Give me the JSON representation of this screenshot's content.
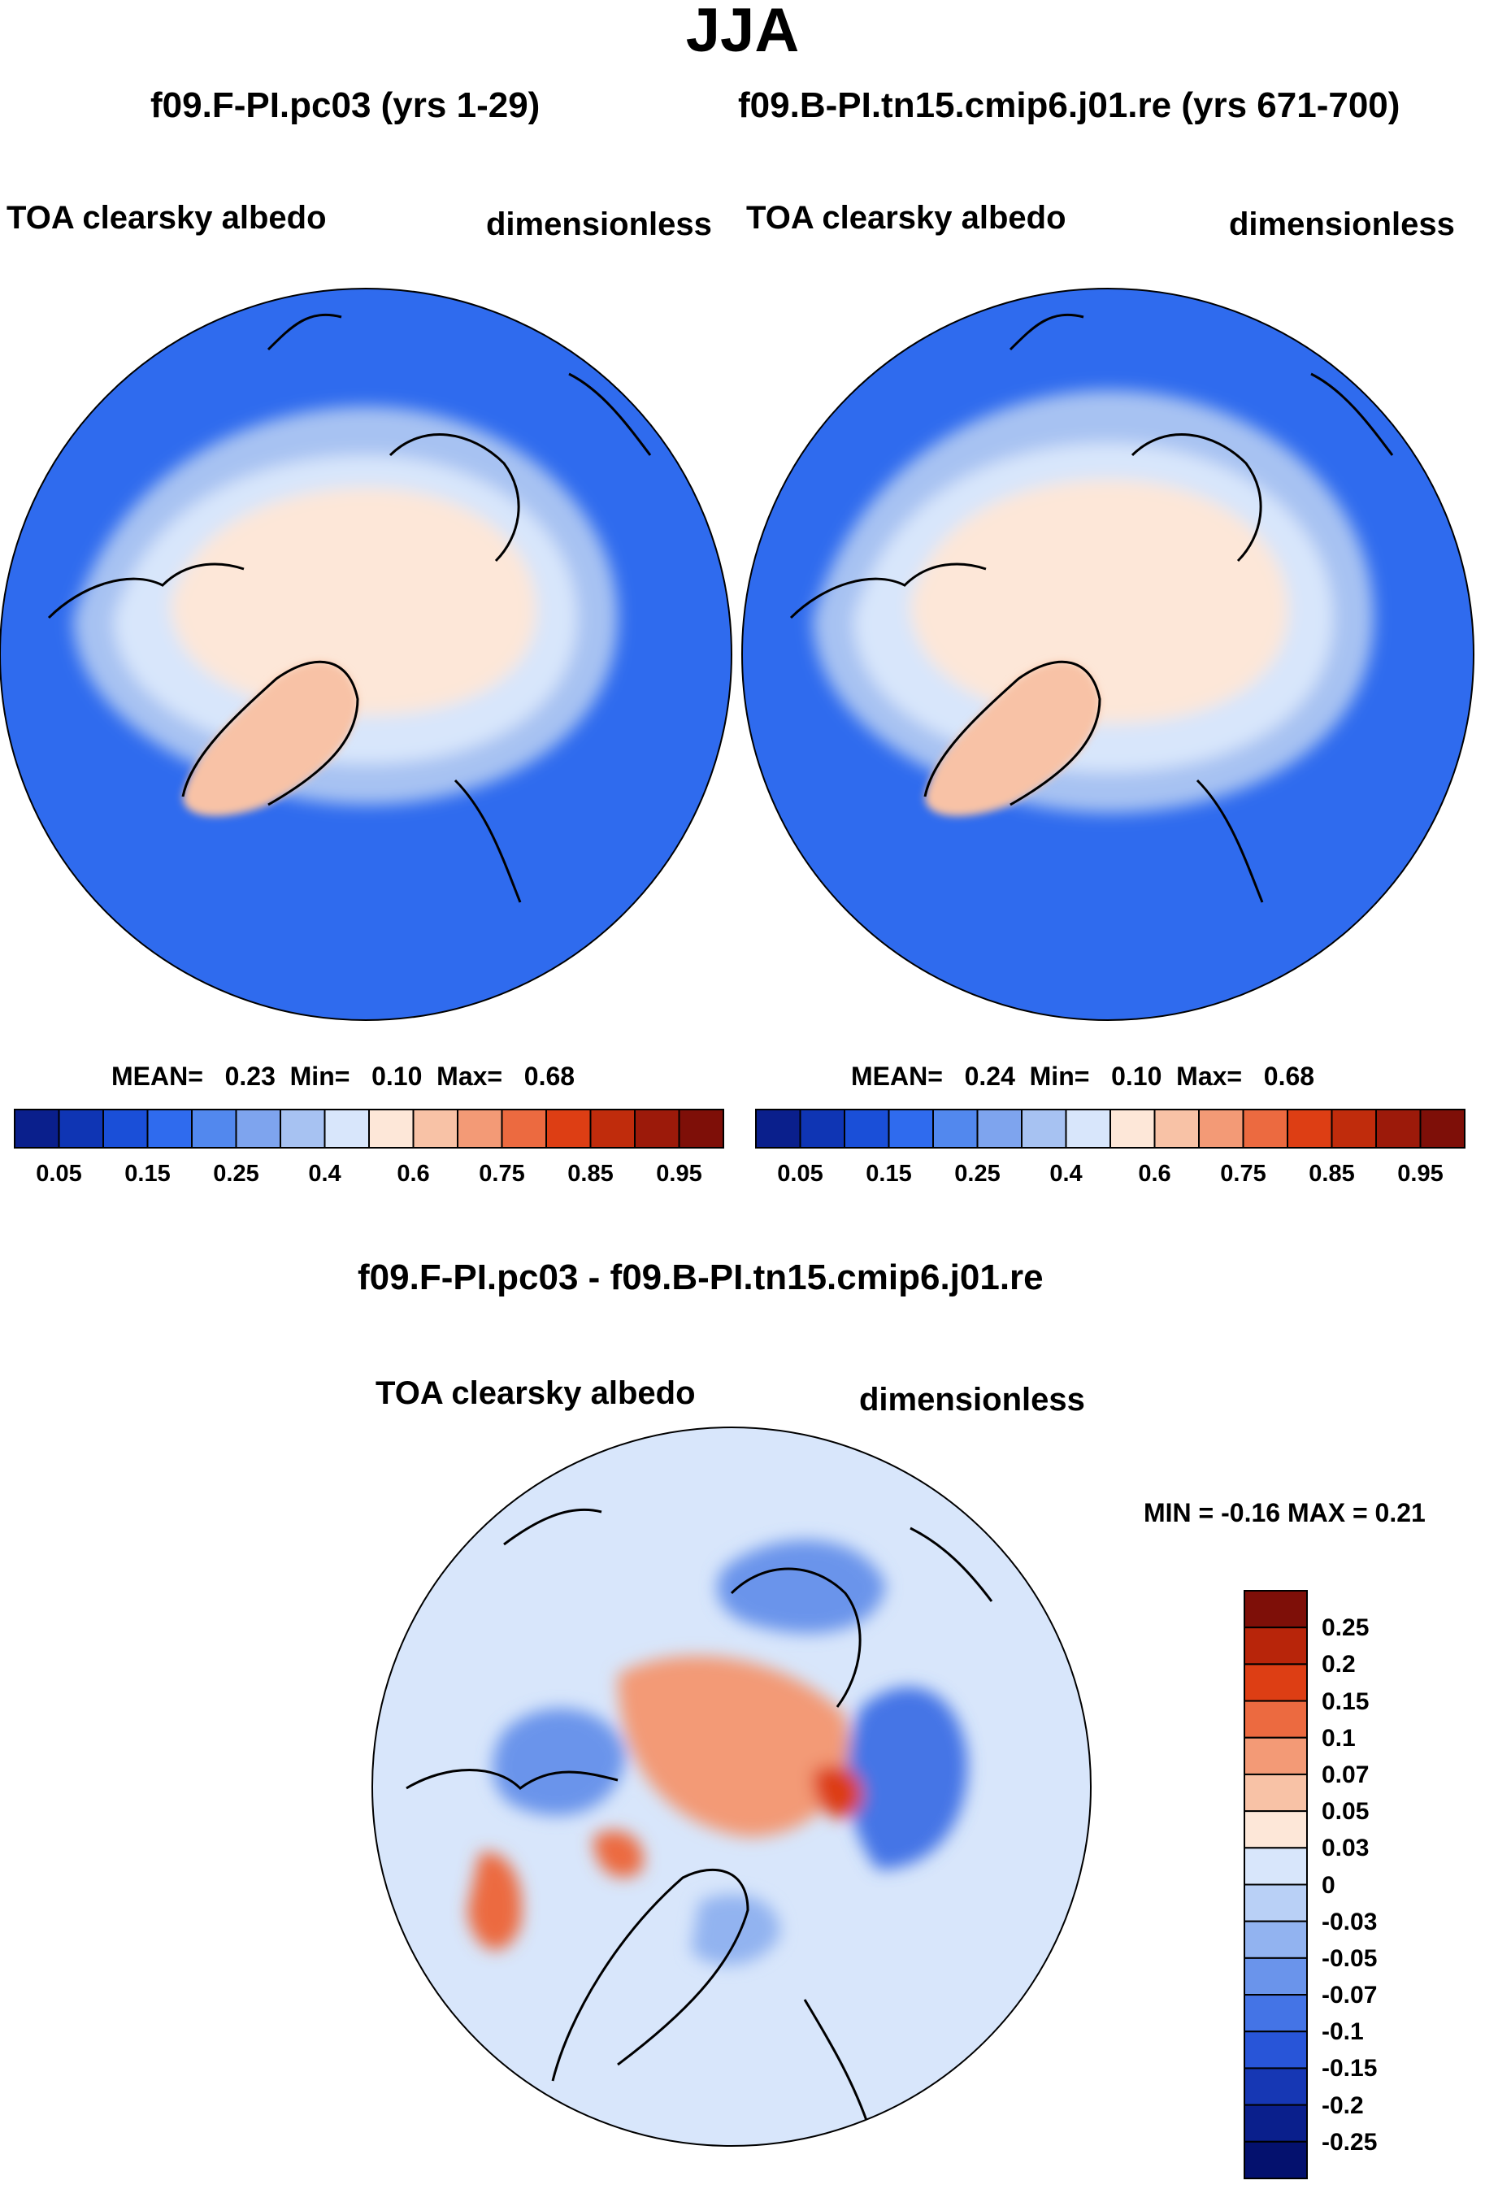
{
  "header": {
    "title": "JJA"
  },
  "panels": [
    {
      "id": "left",
      "title": "f09.F-PI.pc03 (yrs 1-29)",
      "variable": "TOA clearsky albedo",
      "units": "dimensionless",
      "stats": {
        "mean_label": "MEAN=",
        "mean": "0.23",
        "min_label": "Min=",
        "min": "0.10",
        "max_label": "Max=",
        "max": "0.68"
      }
    },
    {
      "id": "right",
      "title": "f09.B-PI.tn15.cmip6.j01.re (yrs 671-700)",
      "variable": "TOA clearsky albedo",
      "units": "dimensionless",
      "stats": {
        "mean_label": "MEAN=",
        "mean": "0.24",
        "min_label": "Min=",
        "min": "0.10",
        "max_label": "Max=",
        "max": "0.68"
      }
    },
    {
      "id": "diff",
      "title": "f09.F-PI.pc03 - f09.B-PI.tn15.cmip6.j01.re",
      "variable": "TOA clearsky albedo",
      "units": "dimensionless",
      "stats_text": "MIN =  -0.16 MAX =   0.21"
    }
  ],
  "chart_data": [
    {
      "type": "heatmap",
      "projection": "north-polar-stereographic",
      "title": "f09.F-PI.pc03 (yrs 1-29)",
      "variable": "TOA clearsky albedo",
      "units": "dimensionless",
      "mean": 0.23,
      "min": 0.1,
      "max": 0.68,
      "colorbar": {
        "levels": [
          "0.05",
          "0.1",
          "0.15",
          "0.2",
          "0.25",
          "0.3",
          "0.4",
          "0.5",
          "0.6",
          "0.7",
          "0.75",
          "0.8",
          "0.85",
          "0.9",
          "0.95"
        ],
        "tick_labels": [
          "0.05",
          "0.15",
          "0.25",
          "0.4",
          "0.6",
          "0.75",
          "0.85",
          "0.95"
        ],
        "colors": [
          "#0a1f8c",
          "#0f35b4",
          "#1a4fd8",
          "#2f6bee",
          "#5288ee",
          "#7ea4ee",
          "#a7c2f2",
          "#d8e6fb",
          "#fde7d8",
          "#f8c2a6",
          "#f39a76",
          "#ec6a40",
          "#dd3e14",
          "#c02c0c",
          "#9c1a0a",
          "#7e0f08"
        ]
      },
      "regions": {
        "background_ocean": 0.15,
        "central_arctic": 0.58,
        "greenland": 0.62,
        "inner_ice_edge": 0.45,
        "outer_ice_edge": 0.33
      }
    },
    {
      "type": "heatmap",
      "projection": "north-polar-stereographic",
      "title": "f09.B-PI.tn15.cmip6.j01.re (yrs 671-700)",
      "variable": "TOA clearsky albedo",
      "units": "dimensionless",
      "mean": 0.24,
      "min": 0.1,
      "max": 0.68,
      "colorbar": {
        "levels": [
          "0.05",
          "0.1",
          "0.15",
          "0.2",
          "0.25",
          "0.3",
          "0.4",
          "0.5",
          "0.6",
          "0.7",
          "0.75",
          "0.8",
          "0.85",
          "0.9",
          "0.95"
        ],
        "tick_labels": [
          "0.05",
          "0.15",
          "0.25",
          "0.4",
          "0.6",
          "0.75",
          "0.85",
          "0.95"
        ],
        "colors": [
          "#0a1f8c",
          "#0f35b4",
          "#1a4fd8",
          "#2f6bee",
          "#5288ee",
          "#7ea4ee",
          "#a7c2f2",
          "#d8e6fb",
          "#fde7d8",
          "#f8c2a6",
          "#f39a76",
          "#ec6a40",
          "#dd3e14",
          "#c02c0c",
          "#9c1a0a",
          "#7e0f08"
        ]
      },
      "regions": {
        "background_ocean": 0.15,
        "central_arctic": 0.58,
        "greenland": 0.62,
        "inner_ice_edge": 0.45,
        "outer_ice_edge": 0.35
      }
    },
    {
      "type": "heatmap",
      "projection": "north-polar-stereographic",
      "title": "f09.F-PI.pc03 - f09.B-PI.tn15.cmip6.j01.re",
      "variable": "TOA clearsky albedo",
      "units": "dimensionless",
      "min": -0.16,
      "max": 0.21,
      "colorbar": {
        "orientation": "vertical",
        "tick_labels": [
          "0.25",
          "0.2",
          "0.15",
          "0.1",
          "0.07",
          "0.05",
          "0.03",
          "0",
          "-0.03",
          "-0.05",
          "-0.07",
          "-0.1",
          "-0.15",
          "-0.2",
          "-0.25"
        ],
        "colors": [
          "#7e0f08",
          "#b8250a",
          "#dd3e14",
          "#ec6a40",
          "#f39a76",
          "#f8c2a6",
          "#fde7d8",
          "#d8e6fb",
          "#b9d0f6",
          "#92b3f0",
          "#6a94eb",
          "#4474e6",
          "#2855d8",
          "#1637b4",
          "#0a1f8c",
          "#04116e"
        ]
      },
      "regions": {
        "background": 0.02,
        "siberian_shelf": 0.08,
        "barents_kara": -0.08,
        "canadian_archipelago": -0.06,
        "hudson_bay": 0.12,
        "baffin": -0.04
      }
    }
  ]
}
